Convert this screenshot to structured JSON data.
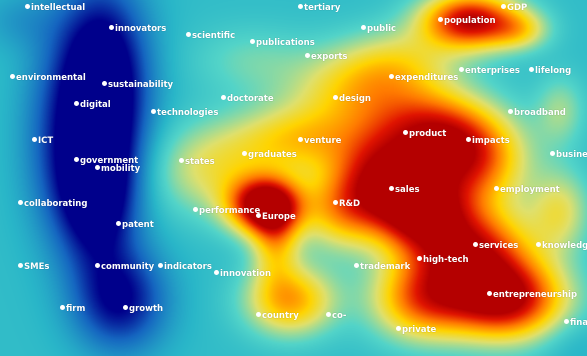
{
  "map": {
    "type": "density-map",
    "colors": [
      "#00008b",
      "#1565c0",
      "#29b6c8",
      "#53d4c8",
      "#dfe06c",
      "#ffd400",
      "#ff7a00",
      "#e01400",
      "#b40000"
    ],
    "terms": [
      "intellectual",
      "tertiary",
      "GDP",
      "population",
      "innovators",
      "scientific",
      "publications",
      "public",
      "exports",
      "enterprises",
      "lifelong",
      "environmental",
      "sustainability",
      "expenditures",
      "digital",
      "doctorate",
      "design",
      "technologies",
      "broadband",
      "product",
      "ICT",
      "venture",
      "impacts",
      "government",
      "graduates",
      "busine",
      "mobility",
      "states",
      "sales",
      "employment",
      "collaborating",
      "R&D",
      "performance",
      "Europe",
      "patent",
      "services",
      "knowledge",
      "SMEs",
      "community",
      "indicators",
      "trademark",
      "high-tech",
      "innovation",
      "entrepreneurship",
      "firm",
      "growth",
      "country",
      "co-",
      "fina",
      "private"
    ]
  }
}
